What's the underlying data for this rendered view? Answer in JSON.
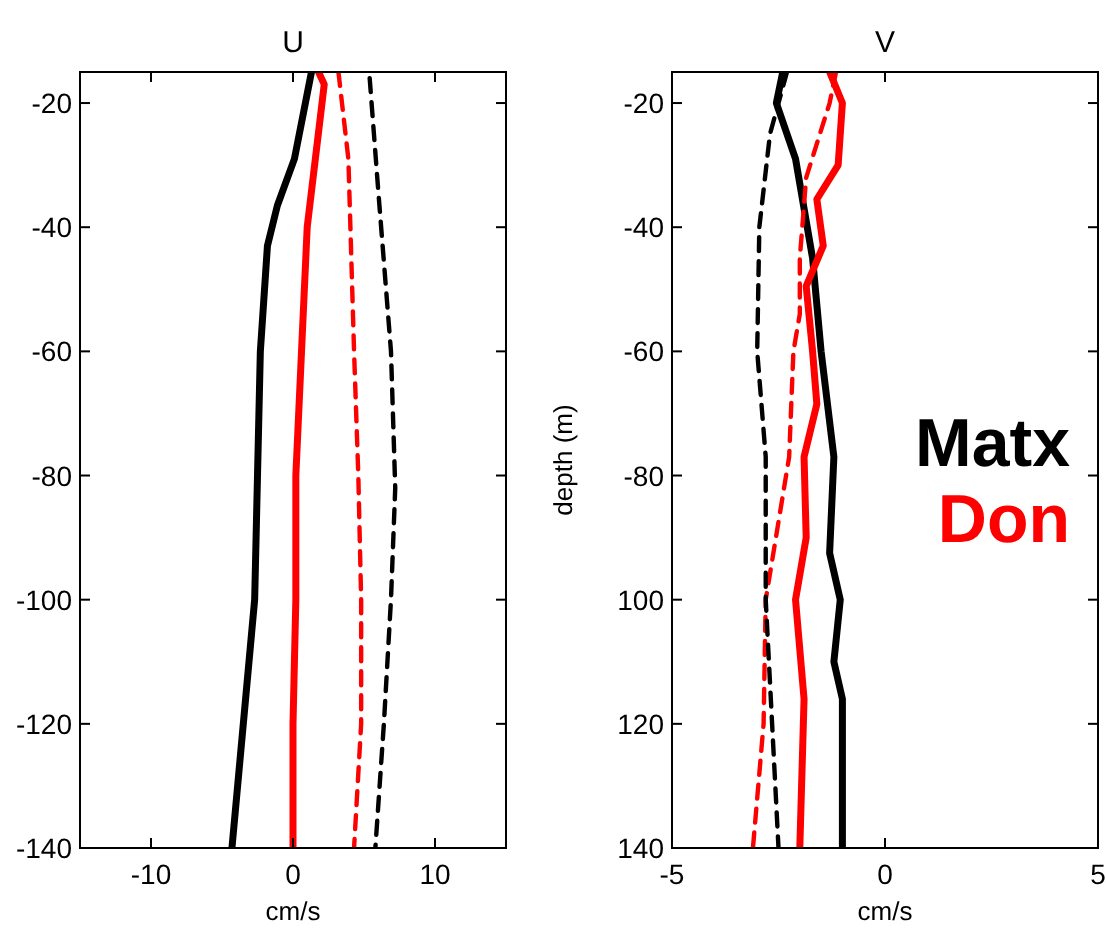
{
  "chart_data": [
    {
      "type": "line",
      "title": "U",
      "xlabel": "cm/s",
      "xlim": [
        -15,
        15
      ],
      "xticks": [
        -10,
        0,
        10
      ],
      "ylim": [
        -140,
        -15
      ],
      "yticks": [
        -140,
        -120,
        -100,
        -80,
        -60,
        -40,
        -20
      ],
      "series": [
        {
          "color": "#000000",
          "line_style": "solid",
          "x": [
            1.3,
            0.1,
            -1.1,
            -1.8,
            -2.3,
            -2.5,
            -2.7,
            -3.5,
            -4.3
          ],
          "values": [
            -15,
            -29,
            -36.5,
            -43,
            -60,
            -80,
            -100,
            -120,
            -140
          ]
        },
        {
          "color": "#ff0000",
          "line_style": "solid",
          "x": [
            1.8,
            2.2,
            1.0,
            0.6,
            0.2,
            0.2,
            0,
            0
          ],
          "values": [
            -15,
            -17,
            -40,
            -60,
            -80,
            -100,
            -120,
            -140
          ]
        },
        {
          "color": "#ff0000",
          "line_style": "dashed",
          "x": [
            3.2,
            3.9,
            4.3,
            4.6,
            4.8,
            4.8,
            4.3
          ],
          "values": [
            -15,
            -29,
            -60,
            -80,
            -100,
            -120,
            -140
          ]
        },
        {
          "color": "#000000",
          "line_style": "dashed",
          "x": [
            5.4,
            6.0,
            6.9,
            7.2,
            6.9,
            6.4,
            5.8
          ],
          "values": [
            -16,
            -34,
            -60,
            -82,
            -100,
            -120,
            -140
          ]
        }
      ]
    },
    {
      "type": "line",
      "title": "V",
      "xlabel": "cm/s",
      "ylabel": "depth (m)",
      "xlim": [
        -5,
        5
      ],
      "xticks": [
        -5,
        0,
        5
      ],
      "ylim": [
        -140,
        -15
      ],
      "yticks": [
        {
          "value": -140,
          "label": "140"
        },
        {
          "value": -120,
          "label": "120"
        },
        {
          "value": -100,
          "label": "100"
        },
        -80,
        -60,
        -40,
        -20
      ],
      "legend": "right",
      "series": [
        {
          "name": "Matx",
          "color": "#000000",
          "line_style": "solid",
          "x": [
            -2.4,
            -2.55,
            -2.1,
            -1.7,
            -1.5,
            -1.2,
            -1.3,
            -1.05,
            -1.2,
            -1.0,
            -1.0
          ],
          "values": [
            -15,
            -20,
            -29,
            -45,
            -60,
            -77,
            -92.5,
            -100,
            -110,
            -116,
            -140
          ]
        },
        {
          "name": "Don",
          "color": "#ff0000",
          "line_style": "solid",
          "x": [
            -1.3,
            -1.0,
            -1.1,
            -1.6,
            -1.45,
            -1.85,
            -1.7,
            -1.6,
            -1.9,
            -1.85,
            -2.1,
            -1.9,
            -2.0
          ],
          "values": [
            -15,
            -20,
            -30,
            -35.5,
            -43,
            -49.5,
            -60,
            -68.5,
            -77,
            -90,
            -100,
            -116,
            -140
          ]
        },
        {
          "color": "#ff0000",
          "line_style": "dashed",
          "x": [
            -1.15,
            -1.3,
            -1.85,
            -2.0,
            -2.0,
            -2.15,
            -2.25,
            -2.8,
            -2.85,
            -3.1
          ],
          "values": [
            -15,
            -20,
            -32,
            -45,
            -54,
            -60,
            -77,
            -100,
            -120,
            -140
          ]
        },
        {
          "color": "#000000",
          "line_style": "dashed",
          "x": [
            -2.3,
            -2.7,
            -2.95,
            -3.0,
            -2.8,
            -2.8,
            -2.65,
            -2.5
          ],
          "values": [
            -15,
            -25,
            -40,
            -60,
            -77,
            -100,
            -120,
            -140
          ]
        }
      ]
    }
  ]
}
